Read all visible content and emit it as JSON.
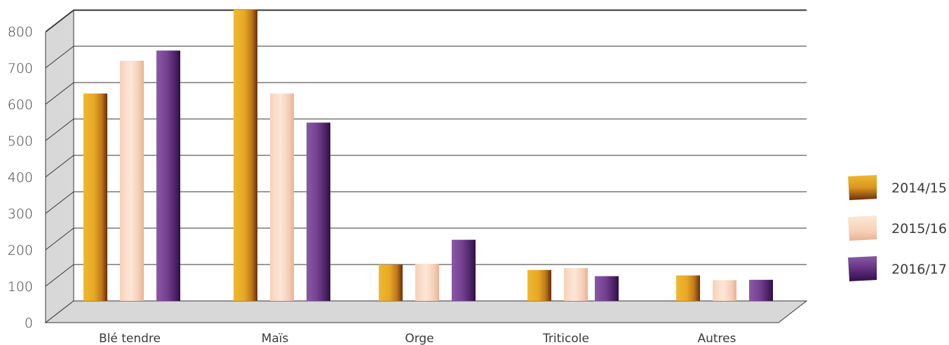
{
  "chart_data": {
    "type": "bar",
    "style": "3d-clustered-column",
    "categories": [
      "Blé tendre",
      "Maïs",
      "Orge",
      "Triticole",
      "Autres"
    ],
    "series": [
      {
        "name": "2014/15",
        "values": [
          570,
          800,
          100,
          85,
          70
        ],
        "color": "#e0a020"
      },
      {
        "name": "2015/16",
        "values": [
          660,
          570,
          102,
          90,
          57
        ],
        "color": "#f8ddcc"
      },
      {
        "name": "2016/17",
        "values": [
          688,
          490,
          168,
          68,
          58
        ],
        "color": "#6e3a88"
      }
    ],
    "y_ticks": [
      "0",
      "100",
      "200",
      "300",
      "400",
      "500",
      "600",
      "700",
      "800"
    ],
    "ylim": [
      0,
      800
    ],
    "grid": true,
    "legend_position": "right"
  }
}
